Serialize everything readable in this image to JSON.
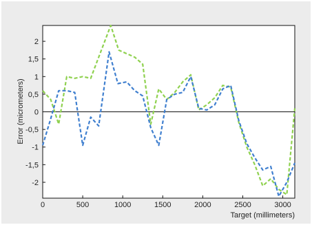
{
  "chart_data": {
    "type": "line",
    "title": "",
    "xlabel": "Target (millimeters)",
    "ylabel": "Error (micrometers)",
    "xlim": [
      0,
      3150
    ],
    "ylim": [
      -2.45,
      2.45
    ],
    "x_ticks": [
      0,
      500,
      1000,
      1500,
      2000,
      2500,
      3000
    ],
    "x_tick_labels": [
      "0",
      "500",
      "1000",
      "1500",
      "2000",
      "2500",
      "3000"
    ],
    "y_ticks": [
      2,
      1.5,
      1,
      0.5,
      0,
      -0.5,
      -1,
      -1.5,
      -2
    ],
    "y_tick_labels": [
      "2",
      "1,5",
      "1",
      "0,5",
      "0",
      "-0,5",
      "-1",
      "-1,5",
      "-2"
    ],
    "zero_line": true,
    "grid": false,
    "legend": "none",
    "series": [
      {
        "color": "#8fd14f",
        "style": "dashed",
        "x": [
          0,
          100,
          200,
          300,
          400,
          500,
          600,
          700,
          850,
          950,
          1050,
          1150,
          1250,
          1350,
          1450,
          1550,
          1650,
          1750,
          1850,
          1950,
          2050,
          2150,
          2250,
          2350,
          2450,
          2550,
          2650,
          2750,
          2850,
          2950,
          3050,
          3150
        ],
        "y": [
          0.6,
          0.35,
          -0.35,
          1.0,
          0.95,
          1.0,
          0.95,
          1.55,
          2.45,
          1.75,
          1.65,
          1.55,
          1.35,
          -0.35,
          0.65,
          0.35,
          0.55,
          0.85,
          1.05,
          0.05,
          0.2,
          0.4,
          0.75,
          0.7,
          -0.3,
          -1.0,
          -1.5,
          -2.1,
          -1.9,
          -2.2,
          -2.35,
          0.1
        ]
      },
      {
        "color": "#3f7fcf",
        "style": "dashed",
        "x": [
          0,
          100,
          200,
          300,
          400,
          500,
          600,
          700,
          830,
          940,
          1050,
          1150,
          1250,
          1350,
          1450,
          1550,
          1650,
          1750,
          1850,
          1950,
          2050,
          2150,
          2250,
          2350,
          2450,
          2550,
          2650,
          2750,
          2850,
          2950,
          3050,
          3150
        ],
        "y": [
          -0.95,
          -0.2,
          0.6,
          0.6,
          0.55,
          -0.95,
          -0.15,
          -0.4,
          1.7,
          0.8,
          0.85,
          0.6,
          0.45,
          -0.45,
          -0.95,
          0.35,
          0.5,
          0.55,
          1.0,
          0.1,
          0.05,
          0.2,
          0.65,
          0.75,
          -0.25,
          -0.9,
          -1.3,
          -1.65,
          -1.55,
          -2.4,
          -2.0,
          -1.45
        ]
      }
    ]
  }
}
